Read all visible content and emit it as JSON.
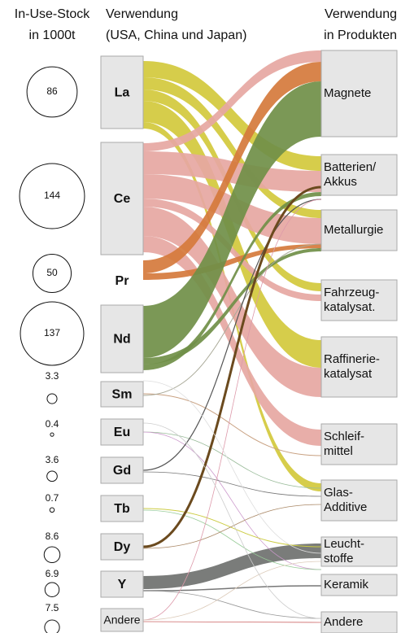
{
  "header": {
    "stock": [
      "In-Use-Stock",
      "in 1000t"
    ],
    "use": [
      "Verwendung",
      "(USA, China und Japan)"
    ],
    "products": [
      "Verwendung",
      "in Produkten"
    ]
  },
  "elements": [
    {
      "label": "La",
      "stock": 86
    },
    {
      "label": "Ce",
      "stock": 144
    },
    {
      "label": "Pr",
      "stock": 50
    },
    {
      "label": "Nd",
      "stock": 137
    },
    {
      "label": "Sm",
      "stock": 3.3
    },
    {
      "label": "Eu",
      "stock": 0.4
    },
    {
      "label": "Gd",
      "stock": 3.6
    },
    {
      "label": "Tb",
      "stock": 0.7
    },
    {
      "label": "Dy",
      "stock": 8.6
    },
    {
      "label": "Y",
      "stock": 6.9
    },
    {
      "label": "Andere",
      "stock": 7.5
    }
  ],
  "products": [
    {
      "label": [
        "Magnete"
      ]
    },
    {
      "label": [
        "Batterien/",
        "Akkus"
      ]
    },
    {
      "label": [
        "Metallurgie"
      ]
    },
    {
      "label": [
        "Fahrzeug-",
        "katalysat."
      ]
    },
    {
      "label": [
        "Raffinerie-",
        "katalysat"
      ]
    },
    {
      "label": [
        "Schleif-",
        "mittel"
      ]
    },
    {
      "label": [
        "Glas-",
        "Additive"
      ]
    },
    {
      "label": [
        "Leucht-",
        "stoffe"
      ]
    },
    {
      "label": [
        "Keramik"
      ]
    },
    {
      "label": [
        "Andere"
      ]
    }
  ]
}
